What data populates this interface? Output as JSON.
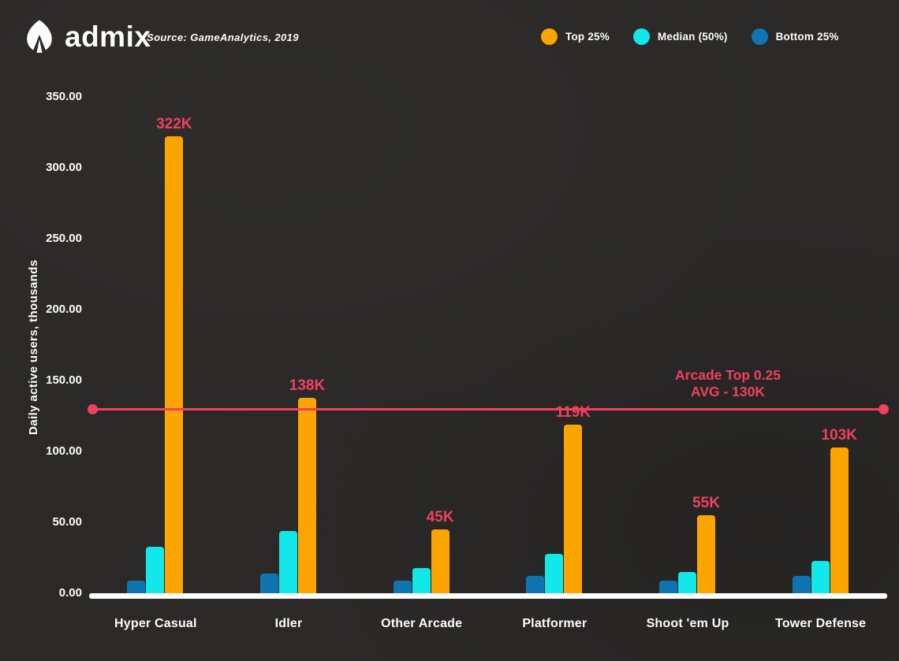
{
  "header": {
    "logo_text": "admix",
    "source_label": "Source:",
    "source_value": "GameAnalytics, 2019"
  },
  "legend": [
    {
      "label": "Top 25%",
      "color": "#fca400"
    },
    {
      "label": "Median (50%)",
      "color": "#12e7e9"
    },
    {
      "label": "Bottom 25%",
      "color": "#0e74b2"
    }
  ],
  "colors": {
    "background": "#2a2928",
    "text": "#fcfcfc",
    "accent_pink": "#f2405e",
    "baseline": "#fdfdfd"
  },
  "chart_data": {
    "type": "bar",
    "title": "",
    "xlabel": "",
    "ylabel": "Daily active users, thousands",
    "ylim": [
      0,
      350
    ],
    "grid": false,
    "legend_position": "top-right",
    "yticks": [
      {
        "value": 350,
        "label": "350.00"
      },
      {
        "value": 300,
        "label": "300.00"
      },
      {
        "value": 250,
        "label": "250.00"
      },
      {
        "value": 200,
        "label": "200.00"
      },
      {
        "value": 150,
        "label": "150.00"
      },
      {
        "value": 100,
        "label": "100.00"
      },
      {
        "value": 50,
        "label": "50.00"
      },
      {
        "value": 0,
        "label": "0.00"
      }
    ],
    "categories": [
      "Hyper Casual",
      "Idler",
      "Other Arcade",
      "Platformer",
      "Shoot 'em Up",
      "Tower Defense"
    ],
    "series": [
      {
        "name": "Bottom 25%",
        "color": "#0e74b2",
        "values": [
          9,
          14,
          9,
          12,
          9,
          12
        ]
      },
      {
        "name": "Median (50%)",
        "color": "#12e7e9",
        "values": [
          33,
          44,
          18,
          28,
          15,
          23
        ]
      },
      {
        "name": "Top 25%",
        "color": "#fca400",
        "values": [
          322,
          138,
          45,
          119,
          55,
          103
        ],
        "labels": [
          "322K",
          "138K",
          "45K",
          "119K",
          "55K",
          "103K"
        ],
        "label_color": "#f2405e"
      }
    ],
    "annotation": {
      "line_value": 130,
      "color": "#f2405e",
      "text_line1": "Arcade Top 0.25",
      "text_line2": "AVG - 130K"
    }
  }
}
